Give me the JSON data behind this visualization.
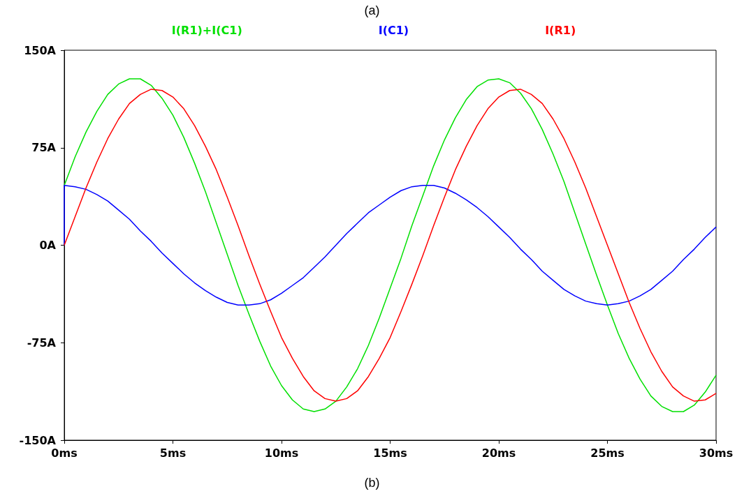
{
  "chart_data": {
    "type": "line",
    "annotations": [
      "(a)",
      "(b)"
    ],
    "x": [
      0,
      0.5,
      1,
      1.5,
      2,
      2.5,
      3,
      3.5,
      4,
      4.5,
      5,
      5.5,
      6,
      6.5,
      7,
      7.5,
      8,
      8.5,
      9,
      9.5,
      10,
      10.5,
      11,
      11.5,
      12,
      12.5,
      13,
      13.5,
      14,
      14.5,
      15,
      15.5,
      16,
      16.5,
      17,
      17.5,
      18,
      18.5,
      19,
      19.5,
      20,
      20.5,
      21,
      21.5,
      22,
      22.5,
      23,
      23.5,
      24,
      24.5,
      25,
      25.5,
      26,
      26.5,
      27,
      27.5,
      28,
      28.5,
      29,
      29.5,
      30
    ],
    "series": [
      {
        "name": "I(R1)+I(C1)",
        "color": "#00e000",
        "values": [
          46,
          68,
          87,
          103,
          116,
          124,
          128,
          128,
          123,
          113,
          100,
          83,
          63,
          41,
          17,
          -7,
          -31,
          -53,
          -74,
          -93,
          -108,
          -119,
          -126,
          -128,
          -126,
          -120,
          -109,
          -95,
          -77,
          -56,
          -33,
          -10,
          15,
          38,
          61,
          81,
          98,
          112,
          122,
          127,
          128,
          125,
          117,
          105,
          89,
          70,
          49,
          25,
          1,
          -23,
          -46,
          -68,
          -87,
          -103,
          -116,
          -124,
          -128,
          -128,
          -123,
          -113,
          -100
        ]
      },
      {
        "name": "I(C1)",
        "color": "#0000ff",
        "x": [
          0,
          0,
          0.5,
          1,
          1.5,
          2,
          2.5,
          3,
          3.5,
          4,
          4.5,
          5,
          5.5,
          6,
          6.5,
          7,
          7.5,
          8,
          8.5,
          9,
          9.5,
          10,
          10.5,
          11,
          11.5,
          12,
          12.5,
          13,
          13.5,
          14,
          14.5,
          15,
          15.5,
          16,
          16.5,
          17,
          17.5,
          18,
          18.5,
          19,
          19.5,
          20,
          20.5,
          21,
          21.5,
          22,
          22.5,
          23,
          23.5,
          24,
          24.5,
          25,
          25.5,
          26,
          26.5,
          27,
          27.5,
          28,
          28.5,
          29,
          29.5,
          30
        ],
        "values": [
          0,
          46,
          45,
          43,
          39,
          34,
          27,
          20,
          11,
          3,
          -6,
          -14,
          -22,
          -29,
          -35,
          -40,
          -44,
          -46,
          -46,
          -45,
          -42,
          -37,
          -31,
          -25,
          -17,
          -9,
          0,
          9,
          17,
          25,
          31,
          37,
          42,
          45,
          46,
          46,
          44,
          40,
          35,
          29,
          22,
          14,
          6,
          -3,
          -11,
          -20,
          -27,
          -34,
          -39,
          -43,
          -45,
          -46,
          -45,
          -43,
          -39,
          -34,
          -27,
          -20,
          -11,
          -3,
          6,
          14
        ]
      },
      {
        "name": "I(R1)",
        "color": "#ff0000",
        "values": [
          0,
          22,
          44,
          64,
          82,
          97,
          109,
          116,
          120,
          119,
          114,
          105,
          92,
          76,
          58,
          37,
          15,
          -8,
          -30,
          -51,
          -71,
          -87,
          -101,
          -112,
          -118,
          -120,
          -118,
          -112,
          -101,
          -87,
          -71,
          -51,
          -30,
          -8,
          15,
          37,
          58,
          76,
          92,
          105,
          114,
          119,
          120,
          116,
          109,
          97,
          82,
          64,
          44,
          22,
          0,
          -22,
          -44,
          -64,
          -82,
          -97,
          -109,
          -116,
          -120,
          -119,
          -114
        ]
      }
    ],
    "xlim": [
      0,
      30
    ],
    "xticks": [
      {
        "value": 0,
        "label": "0ms"
      },
      {
        "value": 5,
        "label": "5ms"
      },
      {
        "value": 10,
        "label": "10ms"
      },
      {
        "value": 15,
        "label": "15ms"
      },
      {
        "value": 20,
        "label": "20ms"
      },
      {
        "value": 25,
        "label": "25ms"
      },
      {
        "value": 30,
        "label": "30ms"
      }
    ],
    "ylim": [
      -150,
      150
    ],
    "yticks": [
      {
        "value": -150,
        "label": "-150A"
      },
      {
        "value": -75,
        "label": "-75A"
      },
      {
        "value": 0,
        "label": "0A"
      },
      {
        "value": 75,
        "label": "75A"
      },
      {
        "value": 150,
        "label": "150A"
      }
    ],
    "grid": false,
    "legend": "top",
    "marker": "none",
    "line_style": "solid"
  }
}
